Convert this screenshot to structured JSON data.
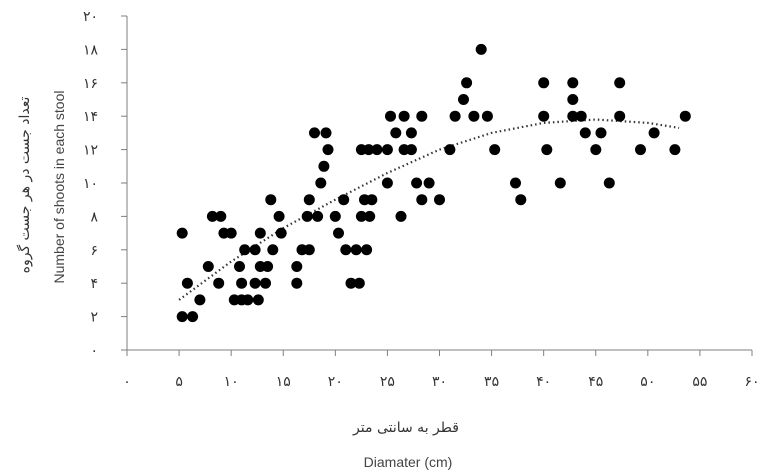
{
  "chart_data": {
    "type": "scatter",
    "xlabel_fa": "قطر به سانتی متر",
    "xlabel": "Diamater (cm)",
    "ylabel_fa": "تعداد جست در هر جست گروه",
    "ylabel": "Number of shoots in each stool",
    "xlim": [
      0,
      60
    ],
    "ylim": [
      0,
      20
    ],
    "x_ticks": [
      0,
      5,
      10,
      15,
      20,
      25,
      30,
      35,
      40,
      45,
      50,
      55,
      60
    ],
    "x_tick_labels": [
      "۰",
      "۵",
      "۱۰",
      "۱۵",
      "۲۰",
      "۲۵",
      "۳۰",
      "۳۵",
      "۴۰",
      "۴۵",
      "۵۰",
      "۵۵",
      "۶۰"
    ],
    "y_ticks": [
      0,
      2,
      4,
      6,
      8,
      10,
      12,
      14,
      16,
      18,
      20
    ],
    "y_tick_labels": [
      "۰",
      "۲",
      "۴",
      "۶",
      "۸",
      "۱۰",
      "۱۲",
      "۱۴",
      "۱۶",
      "۱۸",
      "۲۰"
    ],
    "grid": false,
    "legend": "none",
    "marker_color": "#000000",
    "trendline": {
      "style": "dotted",
      "kind": "polynomial",
      "x": [
        5,
        10,
        15,
        20,
        25,
        30,
        35,
        40,
        45,
        50,
        53
      ],
      "y": [
        3.0,
        5.3,
        7.3,
        9.0,
        10.6,
        12.0,
        13.0,
        13.6,
        13.8,
        13.6,
        13.3
      ]
    },
    "points": [
      {
        "x": 5.3,
        "y": 2
      },
      {
        "x": 6.3,
        "y": 2
      },
      {
        "x": 5.3,
        "y": 7
      },
      {
        "x": 5.8,
        "y": 4
      },
      {
        "x": 7.0,
        "y": 3
      },
      {
        "x": 7.8,
        "y": 5
      },
      {
        "x": 8.2,
        "y": 8
      },
      {
        "x": 8.8,
        "y": 4
      },
      {
        "x": 9.0,
        "y": 8
      },
      {
        "x": 9.3,
        "y": 7
      },
      {
        "x": 10.0,
        "y": 7
      },
      {
        "x": 10.3,
        "y": 3
      },
      {
        "x": 10.8,
        "y": 5
      },
      {
        "x": 11.0,
        "y": 3
      },
      {
        "x": 11.0,
        "y": 4
      },
      {
        "x": 11.3,
        "y": 6
      },
      {
        "x": 11.6,
        "y": 3
      },
      {
        "x": 12.3,
        "y": 4
      },
      {
        "x": 12.3,
        "y": 6
      },
      {
        "x": 12.6,
        "y": 3
      },
      {
        "x": 12.8,
        "y": 5
      },
      {
        "x": 12.8,
        "y": 7
      },
      {
        "x": 13.3,
        "y": 4
      },
      {
        "x": 13.5,
        "y": 5
      },
      {
        "x": 13.8,
        "y": 9
      },
      {
        "x": 14.0,
        "y": 6
      },
      {
        "x": 14.6,
        "y": 8
      },
      {
        "x": 14.8,
        "y": 7
      },
      {
        "x": 16.3,
        "y": 4
      },
      {
        "x": 16.3,
        "y": 5
      },
      {
        "x": 16.8,
        "y": 6
      },
      {
        "x": 17.3,
        "y": 8
      },
      {
        "x": 17.5,
        "y": 6
      },
      {
        "x": 17.5,
        "y": 9
      },
      {
        "x": 18.0,
        "y": 13
      },
      {
        "x": 18.3,
        "y": 8
      },
      {
        "x": 18.6,
        "y": 10
      },
      {
        "x": 18.9,
        "y": 11
      },
      {
        "x": 19.1,
        "y": 13
      },
      {
        "x": 19.3,
        "y": 12
      },
      {
        "x": 20.0,
        "y": 8
      },
      {
        "x": 20.3,
        "y": 7
      },
      {
        "x": 20.8,
        "y": 9
      },
      {
        "x": 21.0,
        "y": 6
      },
      {
        "x": 21.5,
        "y": 4
      },
      {
        "x": 22.0,
        "y": 6
      },
      {
        "x": 22.3,
        "y": 4
      },
      {
        "x": 22.5,
        "y": 8
      },
      {
        "x": 22.5,
        "y": 12
      },
      {
        "x": 22.8,
        "y": 9
      },
      {
        "x": 23.0,
        "y": 6
      },
      {
        "x": 23.2,
        "y": 12
      },
      {
        "x": 23.3,
        "y": 8
      },
      {
        "x": 23.5,
        "y": 9
      },
      {
        "x": 24.0,
        "y": 12
      },
      {
        "x": 25.0,
        "y": 10
      },
      {
        "x": 25.0,
        "y": 12
      },
      {
        "x": 25.3,
        "y": 14
      },
      {
        "x": 25.8,
        "y": 13
      },
      {
        "x": 26.3,
        "y": 8
      },
      {
        "x": 26.6,
        "y": 12
      },
      {
        "x": 26.6,
        "y": 14
      },
      {
        "x": 27.3,
        "y": 12
      },
      {
        "x": 27.3,
        "y": 13
      },
      {
        "x": 27.8,
        "y": 10
      },
      {
        "x": 28.3,
        "y": 9
      },
      {
        "x": 28.3,
        "y": 14
      },
      {
        "x": 29.0,
        "y": 10
      },
      {
        "x": 30.0,
        "y": 9
      },
      {
        "x": 31.0,
        "y": 12
      },
      {
        "x": 31.5,
        "y": 14
      },
      {
        "x": 32.3,
        "y": 15
      },
      {
        "x": 32.6,
        "y": 16
      },
      {
        "x": 33.3,
        "y": 14
      },
      {
        "x": 34.0,
        "y": 18
      },
      {
        "x": 34.6,
        "y": 14
      },
      {
        "x": 35.3,
        "y": 12
      },
      {
        "x": 37.3,
        "y": 10
      },
      {
        "x": 37.8,
        "y": 9
      },
      {
        "x": 40.0,
        "y": 16
      },
      {
        "x": 40.0,
        "y": 14
      },
      {
        "x": 40.3,
        "y": 12
      },
      {
        "x": 41.6,
        "y": 10
      },
      {
        "x": 42.8,
        "y": 16
      },
      {
        "x": 42.8,
        "y": 14
      },
      {
        "x": 42.8,
        "y": 15
      },
      {
        "x": 43.6,
        "y": 14
      },
      {
        "x": 44.0,
        "y": 13
      },
      {
        "x": 45.0,
        "y": 12
      },
      {
        "x": 45.5,
        "y": 13
      },
      {
        "x": 46.3,
        "y": 10
      },
      {
        "x": 47.3,
        "y": 14
      },
      {
        "x": 47.3,
        "y": 16
      },
      {
        "x": 49.3,
        "y": 12
      },
      {
        "x": 50.6,
        "y": 13
      },
      {
        "x": 52.6,
        "y": 12
      },
      {
        "x": 53.6,
        "y": 14
      }
    ]
  }
}
